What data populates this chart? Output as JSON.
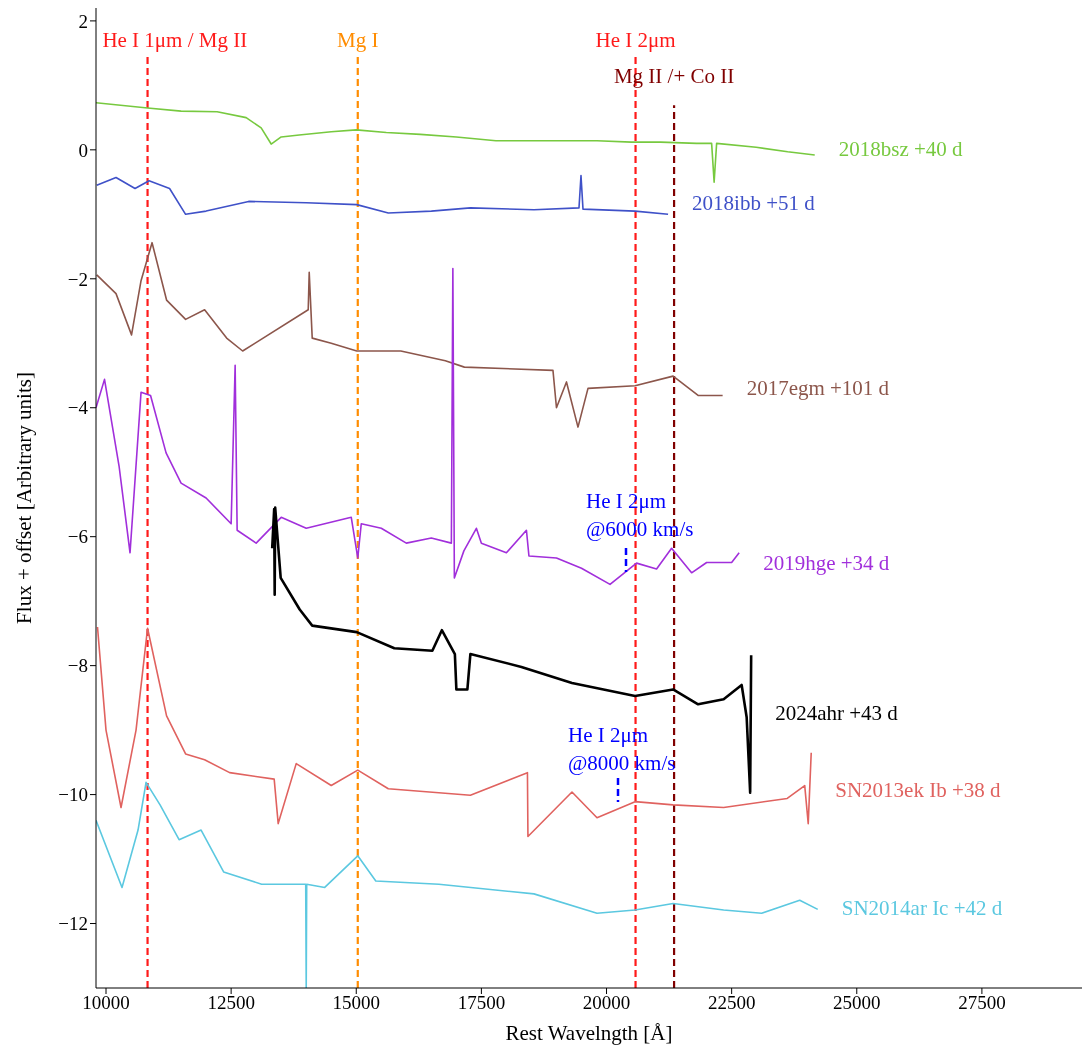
{
  "chart_data": {
    "type": "line",
    "xlabel": "Rest Wavelngth [Å]",
    "ylabel": "Flux + offset [Arbitrary units]",
    "xlim": [
      9800,
      29500
    ],
    "ylim": [
      -13,
      2.2
    ],
    "xticks": [
      10000,
      12500,
      15000,
      17500,
      20000,
      22500,
      25000,
      27500
    ],
    "yticks": [
      -12,
      -10,
      -8,
      -6,
      -4,
      -2,
      0,
      2
    ],
    "series": [
      {
        "name": "2018bsz +40 d",
        "color": "#77c93f",
        "x": [
          9800,
          10830,
          11500,
          12220,
          12800,
          13100,
          13300,
          13500,
          13860,
          14500,
          15000,
          15600,
          16280,
          17000,
          17790,
          18800,
          19810,
          20500,
          21080,
          21800,
          22100,
          22150,
          22200,
          22990,
          23620,
          24160
        ],
        "values": [
          0.73,
          0.65,
          0.6,
          0.59,
          0.5,
          0.34,
          0.09,
          0.2,
          0.23,
          0.28,
          0.31,
          0.27,
          0.24,
          0.2,
          0.14,
          0.14,
          0.14,
          0.12,
          0.12,
          0.1,
          0.1,
          -0.5,
          0.1,
          0.04,
          -0.03,
          -0.08
        ]
      },
      {
        "name": "2018ibb +51 d",
        "color": "#3f51c8",
        "x": [
          9815,
          10200,
          10580,
          10860,
          11270,
          11590,
          12000,
          12850,
          14000,
          15010,
          15640,
          16500,
          17280,
          18550,
          19450,
          19490,
          19530,
          20570,
          21230
        ],
        "values": [
          -0.55,
          -0.43,
          -0.6,
          -0.48,
          -0.6,
          -1.0,
          -0.95,
          -0.8,
          -0.82,
          -0.85,
          -0.98,
          -0.95,
          -0.9,
          -0.93,
          -0.9,
          -0.4,
          -0.92,
          -0.95,
          -1.0
        ]
      },
      {
        "name": "2017egm +101 d",
        "color": "#8c564b",
        "x": [
          9815,
          10200,
          10510,
          10700,
          10920,
          11210,
          11590,
          11970,
          12410,
          12730,
          14040,
          14060,
          14120,
          14500,
          15010,
          15890,
          16780,
          17160,
          18930,
          19000,
          19200,
          19430,
          19630,
          20570,
          21330,
          21830,
          22320
        ],
        "values": [
          -1.94,
          -2.23,
          -2.87,
          -2.03,
          -1.44,
          -2.33,
          -2.63,
          -2.48,
          -2.92,
          -3.12,
          -2.48,
          -1.9,
          -2.92,
          -3.0,
          -3.12,
          -3.12,
          -3.27,
          -3.37,
          -3.42,
          -4.0,
          -3.6,
          -4.3,
          -3.7,
          -3.66,
          -3.51,
          -3.81,
          -3.81
        ]
      },
      {
        "name": "2019hge +34 d",
        "color": "#a12fdb",
        "x": [
          9800,
          9970,
          10260,
          10480,
          10700,
          10890,
          11200,
          11500,
          12000,
          12500,
          12580,
          12620,
          13000,
          13500,
          14000,
          14900,
          15030,
          15100,
          15500,
          16000,
          16500,
          16900,
          16930,
          16960,
          17150,
          17400,
          17500,
          18000,
          18400,
          18450,
          19000,
          19500,
          20070,
          20600,
          21000,
          21300,
          21700,
          22000,
          22500,
          22650
        ],
        "values": [
          -4.0,
          -3.56,
          -4.9,
          -6.25,
          -3.76,
          -3.81,
          -4.7,
          -5.17,
          -5.4,
          -5.8,
          -3.34,
          -5.9,
          -6.1,
          -5.7,
          -5.87,
          -5.7,
          -6.33,
          -5.8,
          -5.87,
          -6.1,
          -6.02,
          -6.1,
          -1.84,
          -6.64,
          -6.22,
          -5.87,
          -6.1,
          -6.25,
          -5.9,
          -6.3,
          -6.33,
          -6.49,
          -6.74,
          -6.41,
          -6.5,
          -6.18,
          -6.56,
          -6.4,
          -6.4,
          -6.25
        ]
      },
      {
        "name": "2024ahr +43 d",
        "color": "#000000",
        "x": [
          13320,
          13360,
          13370,
          13380,
          13490,
          13870,
          14120,
          15010,
          15760,
          16520,
          16710,
          16970,
          17000,
          17220,
          17280,
          18300,
          19310,
          20570,
          21330,
          21830,
          22340,
          22700,
          22800,
          22870,
          22890
        ],
        "values": [
          -6.18,
          -5.57,
          -6.9,
          -5.55,
          -6.64,
          -7.13,
          -7.38,
          -7.48,
          -7.73,
          -7.77,
          -7.45,
          -7.82,
          -8.37,
          -8.37,
          -7.82,
          -8.02,
          -8.27,
          -8.47,
          -8.37,
          -8.6,
          -8.52,
          -8.3,
          -8.8,
          -9.97,
          -7.84
        ]
      },
      {
        "name": "SN2013ek Ib +38 d",
        "color": "#e0625f",
        "x": [
          9830,
          10000,
          10300,
          10600,
          10830,
          11210,
          11590,
          11970,
          12470,
          13360,
          13440,
          13800,
          14500,
          15030,
          15640,
          17280,
          18420,
          18430,
          19310,
          19810,
          20570,
          21330,
          22340,
          23610,
          23960,
          24030,
          24090
        ],
        "values": [
          -7.4,
          -9.0,
          -10.2,
          -9.0,
          -7.42,
          -8.78,
          -9.37,
          -9.46,
          -9.66,
          -9.76,
          -10.45,
          -9.52,
          -9.86,
          -9.62,
          -9.91,
          -10.01,
          -9.66,
          -10.65,
          -9.96,
          -10.36,
          -10.11,
          -10.16,
          -10.2,
          -10.06,
          -9.86,
          -10.45,
          -9.35
        ]
      },
      {
        "name": "SN2014ar Ic +42 d",
        "color": "#5bc8e0",
        "x": [
          9800,
          10320,
          10640,
          10800,
          11080,
          11460,
          11900,
          12350,
          13110,
          13990,
          14000,
          14010,
          14370,
          15030,
          15390,
          16650,
          18550,
          19810,
          20570,
          21330,
          22340,
          23100,
          23860,
          24220
        ],
        "values": [
          -10.4,
          -11.44,
          -10.55,
          -9.81,
          -10.16,
          -10.7,
          -10.55,
          -11.2,
          -11.39,
          -11.39,
          -13,
          -11.39,
          -11.44,
          -10.95,
          -11.34,
          -11.39,
          -11.54,
          -11.84,
          -11.79,
          -11.69,
          -11.79,
          -11.84,
          -11.64,
          -11.78
        ]
      }
    ],
    "ref_lines": [
      {
        "axis": "x",
        "value": 10830,
        "label": "He I 1μm / Mg II",
        "color": "#ff1a1a",
        "line_style": "dashed"
      },
      {
        "axis": "x",
        "value": 15030,
        "label": "Mg I",
        "color": "#ff8c00",
        "line_style": "dashed"
      },
      {
        "axis": "x",
        "value": 20580,
        "label": "He I 2μm",
        "color": "#ff1a1a",
        "line_style": "dashed"
      },
      {
        "axis": "x",
        "value": 21350,
        "label": "Mg II /+ Co II",
        "color": "#800000",
        "line_style": "dashed"
      }
    ],
    "annotations": [
      "He I 2μm\n@6000 km/s",
      "He I 2μm\n@8000 km/s"
    ]
  }
}
